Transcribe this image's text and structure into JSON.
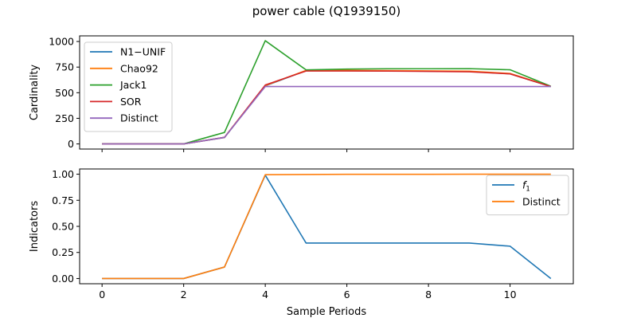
{
  "figure_title": "power cable (Q1939150)",
  "colors": {
    "blue": "#1f77b4",
    "orange": "#ff7f0e",
    "green": "#2ca02c",
    "red": "#d62728",
    "purple": "#9467bd"
  },
  "chart_data": [
    {
      "type": "line",
      "title": "",
      "xlabel": "",
      "ylabel": "Cardinality",
      "xlim": [
        -0.55,
        11.55
      ],
      "ylim": [
        -50,
        1055
      ],
      "x_ticks": [
        0,
        2,
        4,
        6,
        8,
        10
      ],
      "x_tick_labels_visible": false,
      "y_ticks": [
        0,
        250,
        500,
        750,
        1000
      ],
      "y_tick_labels": [
        "0",
        "250",
        "500",
        "750",
        "1000"
      ],
      "legend_position": "top-left",
      "grid": false,
      "x": [
        0,
        1,
        2,
        3,
        4,
        5,
        6,
        7,
        8,
        9,
        10,
        11
      ],
      "series": [
        {
          "name": "N1−UNIF",
          "color": "#1f77b4",
          "values": [
            0,
            0,
            0,
            62,
            567,
            715,
            715,
            713,
            710,
            707,
            685,
            560
          ]
        },
        {
          "name": "Chao92",
          "color": "#ff7f0e",
          "values": [
            0,
            0,
            0,
            64,
            570,
            718,
            718,
            716,
            713,
            710,
            688,
            562
          ]
        },
        {
          "name": "Jack1",
          "color": "#2ca02c",
          "values": [
            0,
            0,
            0,
            112,
            1008,
            723,
            731,
            734,
            734,
            735,
            724,
            563
          ]
        },
        {
          "name": "SOR",
          "color": "#d62728",
          "values": [
            0,
            0,
            0,
            64,
            575,
            712,
            712,
            711,
            708,
            704,
            684,
            560
          ]
        },
        {
          "name": "Distinct",
          "color": "#9467bd",
          "values": [
            0,
            0,
            0,
            64,
            560,
            560,
            560,
            560,
            560,
            560,
            560,
            560
          ]
        }
      ]
    },
    {
      "type": "line",
      "title": "",
      "xlabel": "Sample Periods",
      "ylabel": "Indicators",
      "xlim": [
        -0.55,
        11.55
      ],
      "ylim": [
        -0.05,
        1.05
      ],
      "x_ticks": [
        0,
        2,
        4,
        6,
        8,
        10
      ],
      "x_tick_labels": [
        "0",
        "2",
        "4",
        "6",
        "8",
        "10"
      ],
      "y_ticks": [
        0.0,
        0.25,
        0.5,
        0.75,
        1.0
      ],
      "y_tick_labels": [
        "0.00",
        "0.25",
        "0.50",
        "0.75",
        "1.00"
      ],
      "legend_position": "top-right",
      "grid": false,
      "x": [
        0,
        1,
        2,
        3,
        4,
        5,
        6,
        7,
        8,
        9,
        10,
        11
      ],
      "series": [
        {
          "name": "f1",
          "color": "#1f77b4",
          "values": [
            0,
            0,
            0,
            0.11,
            0.99,
            0.34,
            0.34,
            0.34,
            0.34,
            0.34,
            0.31,
            0.0
          ]
        },
        {
          "name": "Distinct",
          "color": "#ff7f0e",
          "values": [
            0,
            0,
            0,
            0.11,
            0.995,
            0.997,
            0.999,
            0.999,
            0.999,
            1.0,
            1.0,
            1.0
          ]
        }
      ]
    }
  ]
}
